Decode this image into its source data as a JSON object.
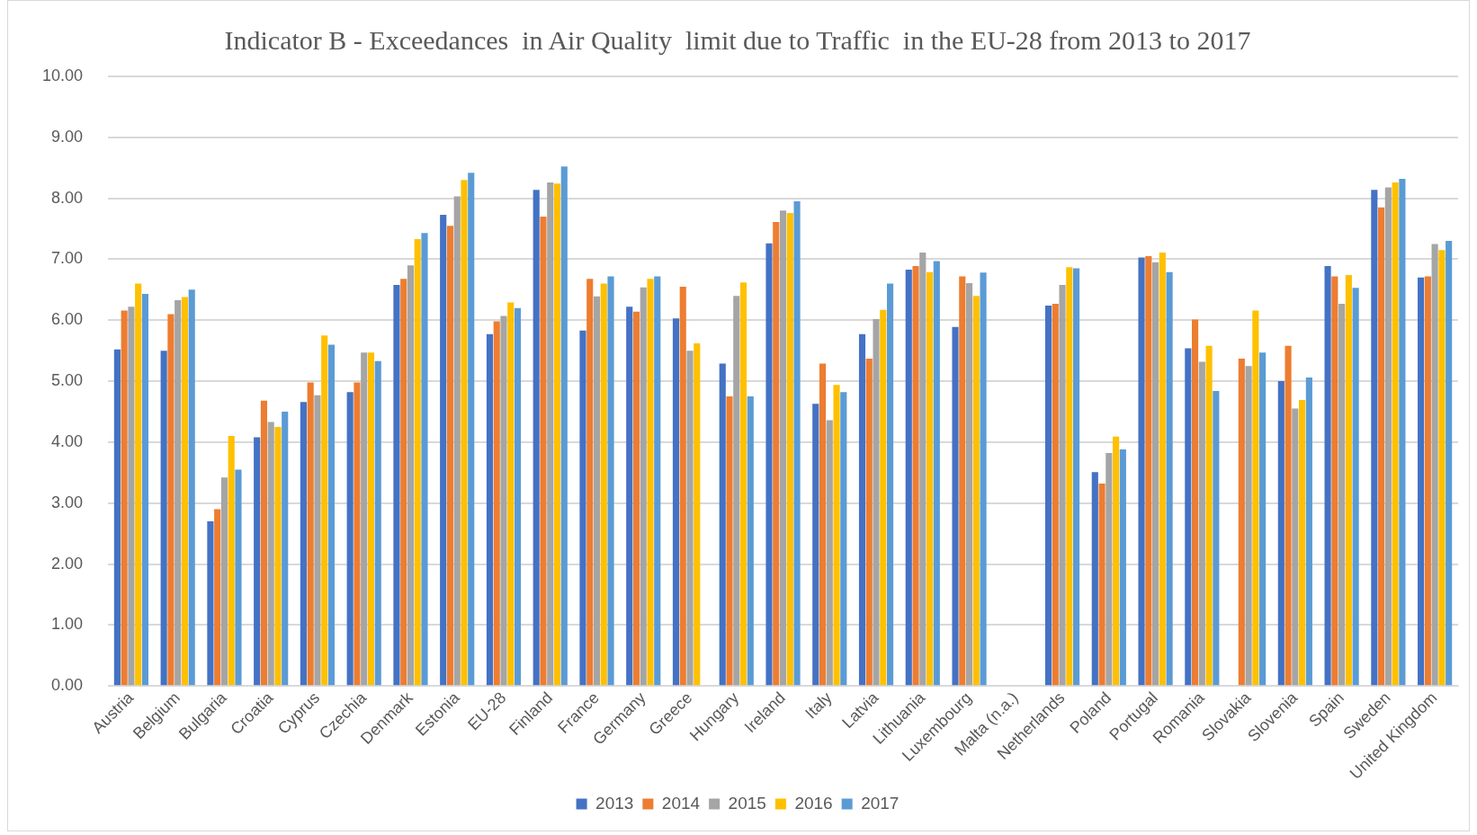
{
  "chart_data": {
    "type": "bar",
    "title": "Indicator B - Exceedances  in Air Quality  limit due to Traffic  in the EU-28 from 2013 to 2017",
    "categories": [
      "Austria",
      "Belgium",
      "Bulgaria",
      "Croatia",
      "Cyprus",
      "Czechia",
      "Denmark",
      "Estonia",
      "EU-28",
      "Finland",
      "France",
      "Germany",
      "Greece",
      "Hungary",
      "Ireland",
      "Italy",
      "Latvia",
      "Lithuania",
      "Luxembourg",
      "Malta (n.a.)",
      "Netherlands",
      "Poland",
      "Portugal",
      "Romania",
      "Slovakia",
      "Slovenia",
      "Spain",
      "Sweden",
      "United Kingdom"
    ],
    "series": [
      {
        "name": "2013",
        "color": "#4472c4",
        "values": [
          5.52,
          5.5,
          2.7,
          4.08,
          4.66,
          4.82,
          6.58,
          7.73,
          5.77,
          8.14,
          5.83,
          6.22,
          6.03,
          5.29,
          7.26,
          4.63,
          5.77,
          6.83,
          5.89,
          null,
          6.24,
          3.51,
          7.03,
          5.54,
          null,
          5.0,
          6.89,
          8.14,
          6.7
        ]
      },
      {
        "name": "2014",
        "color": "#ed7d31",
        "values": [
          6.16,
          6.1,
          2.9,
          4.68,
          4.98,
          4.98,
          6.68,
          7.55,
          5.98,
          7.7,
          6.68,
          6.14,
          6.55,
          4.75,
          7.61,
          5.29,
          5.37,
          6.89,
          6.72,
          null,
          6.27,
          3.32,
          7.05,
          6.01,
          5.37,
          5.58,
          6.72,
          7.85,
          6.72
        ]
      },
      {
        "name": "2015",
        "color": "#a5a5a5",
        "values": [
          6.22,
          6.33,
          3.42,
          4.33,
          4.77,
          5.47,
          6.9,
          8.03,
          6.07,
          8.26,
          6.39,
          6.54,
          5.5,
          6.4,
          7.8,
          4.36,
          6.02,
          7.11,
          6.61,
          null,
          6.58,
          3.82,
          6.95,
          5.32,
          5.25,
          4.55,
          6.27,
          8.18,
          7.25
        ]
      },
      {
        "name": "2016",
        "color": "#ffc000",
        "values": [
          6.6,
          6.38,
          4.1,
          4.25,
          5.75,
          5.47,
          7.33,
          8.3,
          6.29,
          8.24,
          6.6,
          6.68,
          5.62,
          6.62,
          7.76,
          4.94,
          6.17,
          6.79,
          6.4,
          null,
          6.87,
          4.09,
          7.11,
          5.58,
          6.16,
          4.69,
          6.74,
          8.26,
          7.15
        ]
      },
      {
        "name": "2017",
        "color": "#5b9bd5",
        "values": [
          6.43,
          6.5,
          3.55,
          4.5,
          5.6,
          5.33,
          7.43,
          8.42,
          6.2,
          8.52,
          6.72,
          6.72,
          null,
          4.75,
          7.95,
          4.82,
          6.6,
          6.97,
          6.78,
          null,
          6.85,
          3.88,
          6.79,
          4.84,
          5.47,
          5.06,
          6.53,
          8.32,
          7.3
        ]
      }
    ],
    "ylim": [
      0,
      10
    ],
    "yticks": [
      {
        "value": 0,
        "label": "0.00"
      },
      {
        "value": 1,
        "label": "1.00"
      },
      {
        "value": 2,
        "label": "2.00"
      },
      {
        "value": 3,
        "label": "3.00"
      },
      {
        "value": 4,
        "label": "4.00"
      },
      {
        "value": 5,
        "label": "5.00"
      },
      {
        "value": 6,
        "label": "6.00"
      },
      {
        "value": 7,
        "label": "7.00"
      },
      {
        "value": 8,
        "label": "8.00"
      },
      {
        "value": 9,
        "label": "9.00"
      },
      {
        "value": 10,
        "label": "10.00"
      }
    ],
    "grid": "y",
    "legend": "bottom"
  }
}
